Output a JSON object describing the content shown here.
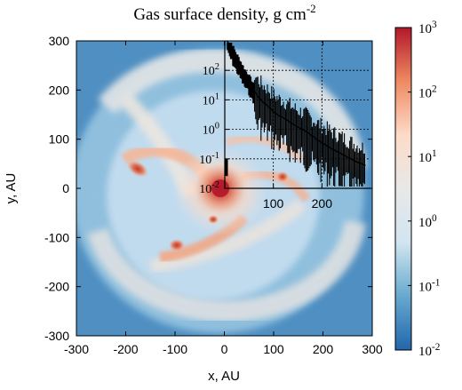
{
  "chart_data": {
    "type": "heatmap",
    "title": "Gas surface density, g cm",
    "title_superscript": "-2",
    "xlabel": "x, AU",
    "ylabel": "y, AU",
    "xlim": [
      -300,
      300
    ],
    "ylim": [
      -300,
      300
    ],
    "x_ticks": [
      -300,
      -200,
      -100,
      0,
      100,
      200,
      300
    ],
    "y_ticks": [
      -300,
      -200,
      -100,
      0,
      100,
      200,
      300
    ],
    "colorbar": {
      "scale": "log",
      "range": [
        0.01,
        1000
      ],
      "ticks": [
        {
          "base": "10",
          "exp": "3",
          "value": 1000
        },
        {
          "base": "10",
          "exp": "2",
          "value": 100
        },
        {
          "base": "10",
          "exp": "1",
          "value": 10
        },
        {
          "base": "10",
          "exp": "0",
          "value": 1
        },
        {
          "base": "10",
          "exp": "-1",
          "value": 0.1
        },
        {
          "base": "10",
          "exp": "-2",
          "value": 0.01
        }
      ],
      "colors": [
        "#2166ac",
        "#67a9cf",
        "#d1e5f0",
        "#e8e8e8",
        "#fddbc7",
        "#ef8a62",
        "#b2182b"
      ]
    },
    "features": {
      "central_peak": {
        "x": -10,
        "y": 5,
        "value": 100
      },
      "clumps": [
        {
          "x": -175,
          "y": 40,
          "value": 30
        },
        {
          "x": -100,
          "y": -120,
          "value": 30
        },
        {
          "x": 115,
          "y": 25,
          "value": 30
        },
        {
          "x": -15,
          "y": -65,
          "value": 10
        }
      ]
    },
    "inset": {
      "type": "line",
      "description_scale": "radial profile, log y",
      "xlim": [
        0,
        300
      ],
      "ylim_log": [
        -2,
        3
      ],
      "x_ticks": [
        100,
        200
      ],
      "y_ticks": [
        {
          "base": "10",
          "exp": "2",
          "value": 100
        },
        {
          "base": "10",
          "exp": "1",
          "value": 10
        },
        {
          "base": "10",
          "exp": "0",
          "value": 1
        },
        {
          "base": "10",
          "exp": "-1",
          "value": 0.1
        },
        {
          "base": "10",
          "exp": "-2",
          "value": 0.01
        }
      ],
      "profile": [
        {
          "x": 5,
          "y": 1000
        },
        {
          "x": 10,
          "y": 700
        },
        {
          "x": 20,
          "y": 300
        },
        {
          "x": 30,
          "y": 150
        },
        {
          "x": 40,
          "y": 70
        },
        {
          "x": 50,
          "y": 40
        },
        {
          "x": 60,
          "y": 20
        },
        {
          "x": 70,
          "y": 12
        },
        {
          "x": 80,
          "y": 8
        },
        {
          "x": 90,
          "y": 6
        },
        {
          "x": 100,
          "y": 4
        },
        {
          "x": 110,
          "y": 3
        },
        {
          "x": 120,
          "y": 2.5
        },
        {
          "x": 130,
          "y": 2
        },
        {
          "x": 140,
          "y": 1.5
        },
        {
          "x": 150,
          "y": 1.2
        },
        {
          "x": 160,
          "y": 1
        },
        {
          "x": 170,
          "y": 0.8
        },
        {
          "x": 180,
          "y": 0.6
        },
        {
          "x": 190,
          "y": 0.45
        },
        {
          "x": 200,
          "y": 0.35
        },
        {
          "x": 210,
          "y": 0.28
        },
        {
          "x": 220,
          "y": 0.22
        },
        {
          "x": 230,
          "y": 0.18
        },
        {
          "x": 240,
          "y": 0.15
        },
        {
          "x": 250,
          "y": 0.12
        },
        {
          "x": 260,
          "y": 0.1
        },
        {
          "x": 270,
          "y": 0.08
        },
        {
          "x": 280,
          "y": 0.07
        },
        {
          "x": 290,
          "y": 0.06
        }
      ]
    }
  }
}
